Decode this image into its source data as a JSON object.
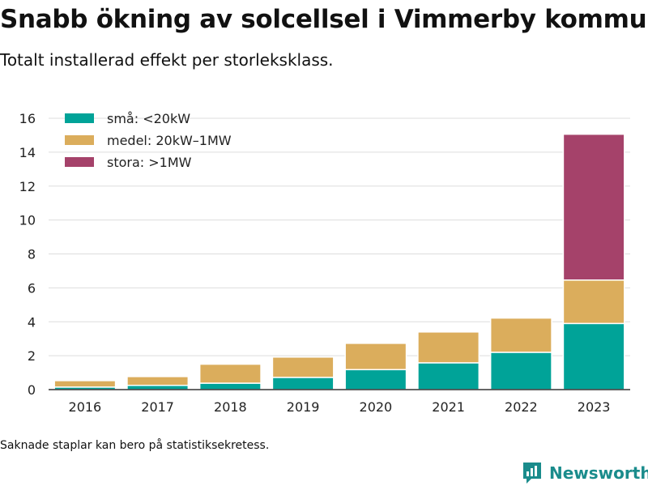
{
  "header": {
    "title": "Snabb ökning av solcellsel i Vimmerby kommun",
    "subtitle": "Totalt installerad effekt per storleksklass."
  },
  "footer": {
    "note": "Saknade staplar kan bero på statistiksekretess.",
    "brand": "Newsworthy",
    "brand_icon": "bar-chart-logo-icon",
    "brand_color": "#1a8c8c"
  },
  "chart_data": {
    "type": "bar",
    "stacked": true,
    "categories": [
      "2016",
      "2017",
      "2018",
      "2019",
      "2020",
      "2021",
      "2022",
      "2023"
    ],
    "series": [
      {
        "name": "små: <20kW",
        "color": "#00a398",
        "values": [
          0.15,
          0.25,
          0.38,
          0.72,
          1.18,
          1.58,
          2.2,
          3.9
        ]
      },
      {
        "name": "medel: 20kW–1MW",
        "color": "#dbad5c",
        "values": [
          0.38,
          0.52,
          1.12,
          1.2,
          1.55,
          1.82,
          2.02,
          2.56
        ]
      },
      {
        "name": "stora: >1MW",
        "color": "#a5426a",
        "values": [
          0,
          0,
          0,
          0,
          0,
          0,
          0,
          8.6
        ]
      }
    ],
    "ylim": [
      0,
      16
    ],
    "yticks": [
      0,
      2,
      4,
      6,
      8,
      10,
      12,
      14,
      16
    ],
    "grid": true,
    "legend": "top-left",
    "xlabel": "",
    "ylabel": ""
  }
}
